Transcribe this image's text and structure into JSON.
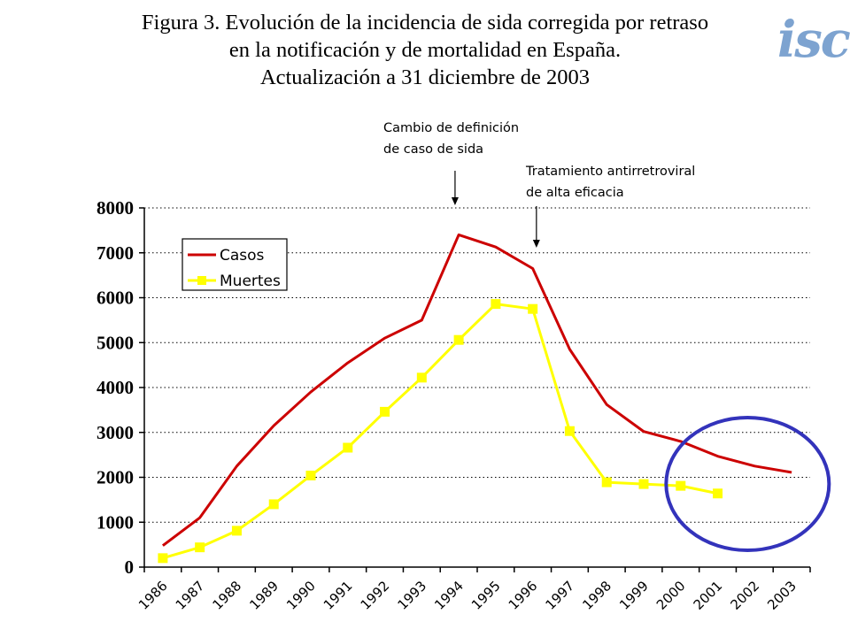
{
  "title": {
    "line1": "Figura 3. Evolución de la incidencia de sida corregida por retraso",
    "line2": "en la notificación y de mortalidad en España.",
    "line3": "Actualización a 31 diciembre de 2003"
  },
  "logo": {
    "text": "isc",
    "name": "isciii-logo"
  },
  "annotations": [
    {
      "lines": [
        "Cambio de definición",
        "de caso de sida"
      ],
      "year": "1994"
    },
    {
      "lines": [
        "Tratamiento antirretroviral",
        "de alta eficacia"
      ],
      "year": "1996"
    }
  ],
  "chart_data": {
    "type": "line",
    "x": [
      "1986",
      "1987",
      "1988",
      "1989",
      "1990",
      "1991",
      "1992",
      "1993",
      "1994",
      "1995",
      "1996",
      "1997",
      "1998",
      "1999",
      "2000",
      "2001",
      "2002",
      "2003"
    ],
    "series": [
      {
        "name": "Casos",
        "color": "#cc0000",
        "marker": "none",
        "values": [
          480,
          1100,
          2250,
          3150,
          3900,
          4550,
          5100,
          5500,
          7400,
          7130,
          6650,
          4850,
          3620,
          3020,
          2800,
          2470,
          2250,
          2110
        ]
      },
      {
        "name": "Muertes",
        "color": "#ffff00",
        "marker": "square",
        "values": [
          200,
          440,
          810,
          1400,
          2040,
          2660,
          3460,
          4220,
          5060,
          5860,
          5750,
          3030,
          1890,
          1850,
          1810,
          1640,
          null,
          null
        ]
      }
    ],
    "ylim": [
      0,
      8000
    ],
    "yticks": [
      "0",
      "1000",
      "2000",
      "3000",
      "4000",
      "5000",
      "6000",
      "7000",
      "8000"
    ],
    "grid": "horizontal-dotted",
    "legend": {
      "placement": "top-left",
      "entries": [
        "Casos",
        "Muertes"
      ]
    },
    "highlight": {
      "shape": "circle",
      "color": "#3333bb",
      "years": [
        "2001",
        "2002",
        "2003"
      ]
    }
  }
}
